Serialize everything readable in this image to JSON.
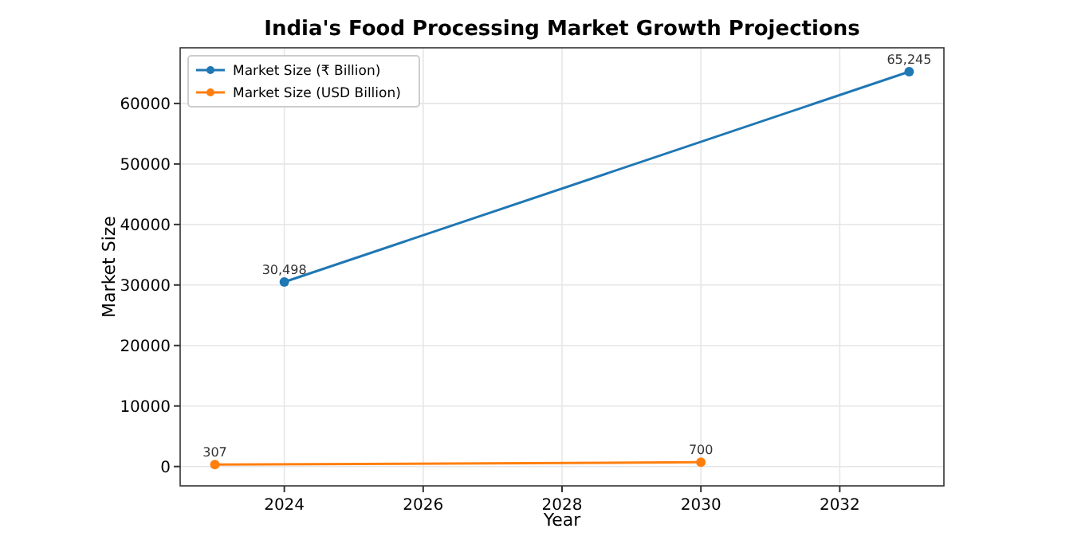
{
  "chart_data": {
    "type": "line",
    "title": "India's Food Processing Market Growth Projections",
    "xlabel": "Year",
    "ylabel": "Market Size",
    "series": [
      {
        "name": "Market Size (₹ Billion)",
        "color": "#1f77b4",
        "x": [
          2024,
          2033
        ],
        "values": [
          30498,
          65245
        ],
        "value_labels": [
          "30,498",
          "65,245"
        ]
      },
      {
        "name": "Market Size (USD Billion)",
        "color": "#ff7f0e",
        "x": [
          2023,
          2030
        ],
        "values": [
          307,
          700
        ],
        "value_labels": [
          "307",
          "700"
        ]
      }
    ],
    "xlim": [
      2022.5,
      2033.5
    ],
    "xticks": [
      2024,
      2026,
      2028,
      2030,
      2032
    ],
    "ylim": [
      -3200,
      69200
    ],
    "yticks": [
      0,
      10000,
      20000,
      30000,
      40000,
      50000,
      60000
    ],
    "grid": true,
    "legend": "top left",
    "marker": "circle",
    "line_style": "solid"
  }
}
